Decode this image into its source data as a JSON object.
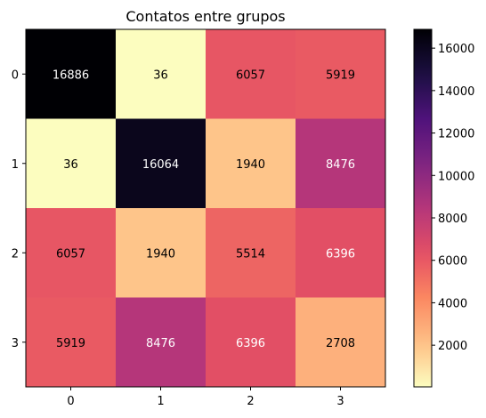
{
  "chart_data": {
    "type": "heatmap",
    "title": "Contatos entre grupos",
    "xlabel": "",
    "ylabel": "",
    "row_labels": [
      "0",
      "1",
      "2",
      "3"
    ],
    "col_labels": [
      "0",
      "1",
      "2",
      "3"
    ],
    "values": [
      [
        16886,
        36,
        6057,
        5919
      ],
      [
        36,
        16064,
        1940,
        8476
      ],
      [
        6057,
        1940,
        5514,
        6396
      ],
      [
        5919,
        8476,
        6396,
        2708
      ]
    ],
    "colormap": "magma_r",
    "color_range": [
      36,
      16886
    ],
    "colorbar": {
      "ticks": [
        2000,
        4000,
        6000,
        8000,
        10000,
        12000,
        14000,
        16000
      ],
      "tick_labels": [
        "2000",
        "4000",
        "6000",
        "8000",
        "10000",
        "12000",
        "14000",
        "16000"
      ]
    },
    "grid": false
  }
}
